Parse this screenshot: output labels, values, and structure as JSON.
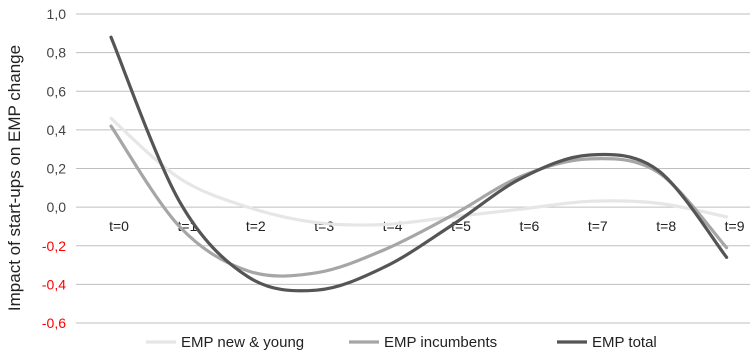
{
  "chart_data": {
    "type": "line",
    "title": "",
    "xlabel": "",
    "ylabel": "Impact of start-ups on EMP change",
    "categories": [
      "t=0",
      "t=1",
      "t=2",
      "t=3",
      "t=4",
      "t=5",
      "t=6",
      "t=7",
      "t=8",
      "t=9"
    ],
    "ylim": [
      -0.6,
      1.0
    ],
    "yticks": [
      "1,0",
      "0,8",
      "0,6",
      "0,4",
      "0,2",
      "0,0",
      "-0,2",
      "-0,4",
      "-0,6"
    ],
    "ytick_values": [
      1.0,
      0.8,
      0.6,
      0.4,
      0.2,
      0.0,
      -0.2,
      -0.4,
      -0.6
    ],
    "grid": true,
    "legend_position": "bottom",
    "series": [
      {
        "name": "EMP new & young",
        "color": "#e6e6e6",
        "values": [
          0.46,
          0.15,
          0.0,
          -0.08,
          -0.09,
          -0.05,
          -0.01,
          0.03,
          0.02,
          -0.05
        ]
      },
      {
        "name": "EMP incumbents",
        "color": "#a6a6a6",
        "values": [
          0.42,
          -0.1,
          -0.33,
          -0.34,
          -0.22,
          -0.04,
          0.16,
          0.25,
          0.18,
          -0.21
        ]
      },
      {
        "name": "EMP total",
        "color": "#555555",
        "values": [
          0.88,
          0.03,
          -0.36,
          -0.43,
          -0.31,
          -0.09,
          0.15,
          0.27,
          0.19,
          -0.26
        ]
      }
    ],
    "colors": {
      "negative_tick": "#ff0000",
      "positive_tick": "#444444",
      "grid": "#bfbfbf"
    }
  }
}
